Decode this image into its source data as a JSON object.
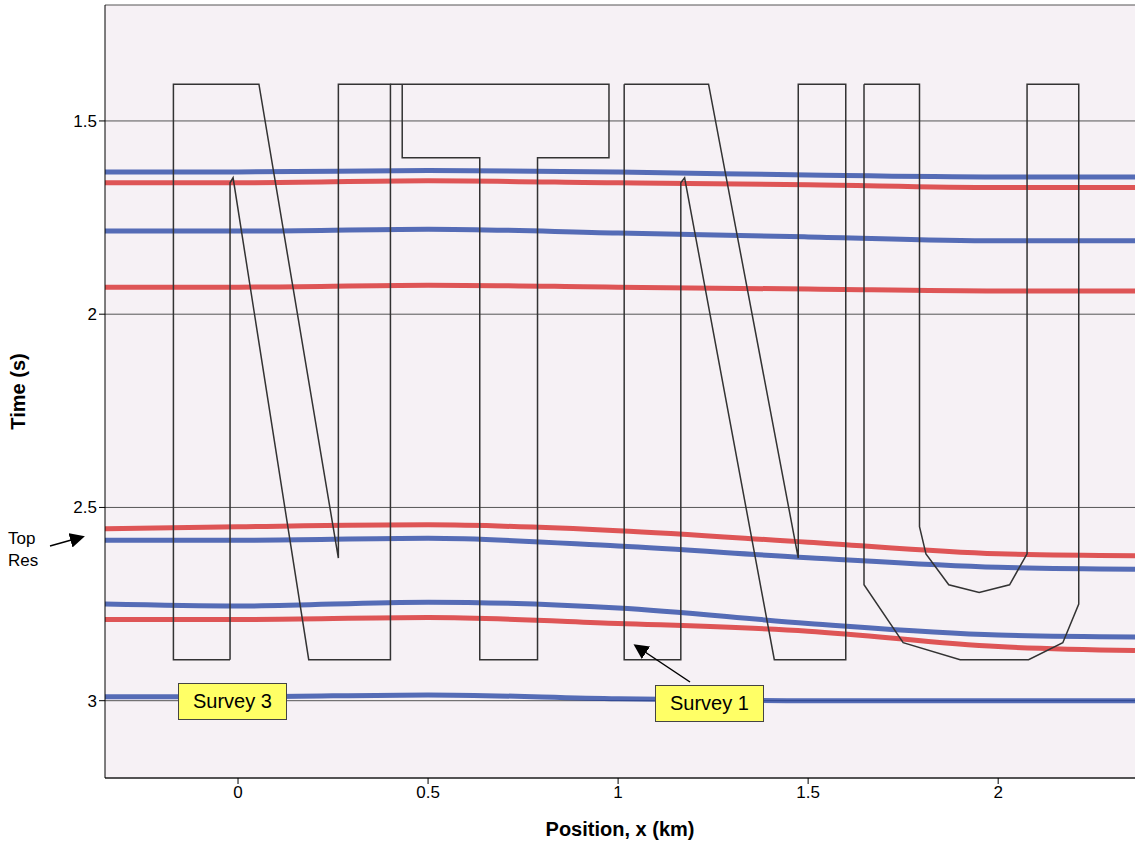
{
  "chart_data": {
    "type": "line",
    "x_label": "Position, x (km)",
    "y_label": "Time (s)",
    "xlim": [
      -0.35,
      2.36
    ],
    "xticks": [
      0,
      0.5,
      1,
      1.5,
      2
    ],
    "ylim": [
      1.2,
      3.2
    ],
    "yticks": [
      1.5,
      2,
      2.5,
      3
    ],
    "grid": true,
    "log": false,
    "annotations": [
      {
        "text": "Top Res"
      },
      {
        "text": "Survey 3"
      },
      {
        "text": "Survey 1"
      }
    ],
    "series": [
      {
        "color": "#333333",
        "x": [
          -0.021,
          -0.17,
          -0.17,
          0.055,
          0.264,
          0.264,
          0.401,
          0.401,
          0.186,
          -0.013,
          -0.021,
          -0.021
        ],
        "values": [
          2.894,
          2.894,
          1.405,
          1.405,
          2.631,
          1.405,
          1.405,
          2.894,
          2.894,
          1.647,
          1.66,
          2.894
        ]
      },
      {
        "color": "#333333",
        "x": [
          0.401,
          0.976,
          0.976,
          0.788,
          0.788,
          0.636,
          0.636,
          0.432,
          0.432
        ],
        "values": [
          1.405,
          1.405,
          1.595,
          1.595,
          2.894,
          2.894,
          1.595,
          1.595,
          1.405
        ]
      },
      {
        "color": "#333333",
        "x": [
          1.016,
          1.238,
          1.474,
          1.474,
          1.599,
          1.599,
          1.411,
          1.175,
          1.165,
          1.165,
          1.016,
          1.016
        ],
        "values": [
          1.405,
          1.405,
          2.631,
          1.405,
          1.405,
          2.894,
          2.894,
          1.647,
          1.66,
          2.894,
          2.894,
          1.405
        ]
      },
      {
        "color": "#333333",
        "x": [
          1.647,
          1.647,
          1.75,
          1.9,
          2.08,
          2.17,
          2.212,
          2.212,
          2.076,
          2.076,
          2.03,
          1.95,
          1.87,
          1.81,
          1.793,
          1.793,
          1.647
        ],
        "values": [
          1.405,
          2.7,
          2.85,
          2.894,
          2.894,
          2.85,
          2.75,
          1.405,
          1.405,
          2.62,
          2.7,
          2.72,
          2.7,
          2.62,
          2.55,
          1.405,
          1.405
        ]
      }
    ],
    "horizons": [
      {
        "color": "#1f3fa0",
        "x": [
          -0.35,
          0,
          0.5,
          1,
          1.5,
          2,
          2.36
        ],
        "values": [
          1.632,
          1.632,
          1.628,
          1.632,
          1.64,
          1.645,
          1.645
        ]
      },
      {
        "color": "#d62020",
        "x": [
          -0.35,
          0,
          0.5,
          1,
          1.5,
          2,
          2.36
        ],
        "values": [
          1.66,
          1.66,
          1.655,
          1.66,
          1.665,
          1.672,
          1.672
        ]
      },
      {
        "color": "#1f3fa0",
        "x": [
          -0.35,
          0,
          0.5,
          1,
          1.5,
          2,
          2.36
        ],
        "values": [
          1.785,
          1.785,
          1.78,
          1.79,
          1.8,
          1.81,
          1.81
        ]
      },
      {
        "color": "#d62020",
        "x": [
          -0.35,
          0,
          0.5,
          1,
          1.5,
          2,
          2.36
        ],
        "values": [
          1.93,
          1.93,
          1.925,
          1.93,
          1.935,
          1.94,
          1.94
        ]
      },
      {
        "color": "#d62020",
        "x": [
          -0.35,
          0,
          0.5,
          1,
          1.5,
          2,
          2.36
        ],
        "values": [
          2.555,
          2.55,
          2.545,
          2.56,
          2.59,
          2.62,
          2.625
        ]
      },
      {
        "color": "#1f3fa0",
        "x": [
          -0.35,
          0,
          0.5,
          1,
          1.5,
          2,
          2.36
        ],
        "values": [
          2.585,
          2.585,
          2.58,
          2.6,
          2.63,
          2.655,
          2.66
        ]
      },
      {
        "color": "#1f3fa0",
        "x": [
          -0.35,
          0,
          0.5,
          1,
          1.5,
          2,
          2.36
        ],
        "values": [
          2.75,
          2.755,
          2.745,
          2.76,
          2.8,
          2.83,
          2.835
        ]
      },
      {
        "color": "#d62020",
        "x": [
          -0.35,
          0,
          0.5,
          1,
          1.5,
          2,
          2.36
        ],
        "values": [
          2.79,
          2.79,
          2.785,
          2.8,
          2.82,
          2.86,
          2.87
        ]
      },
      {
        "color": "#1f3fa0",
        "x": [
          -0.35,
          0,
          0.5,
          1,
          1.5,
          2,
          2.36
        ],
        "values": [
          2.99,
          2.99,
          2.985,
          2.995,
          3.0,
          3.0,
          3.0
        ]
      }
    ]
  }
}
